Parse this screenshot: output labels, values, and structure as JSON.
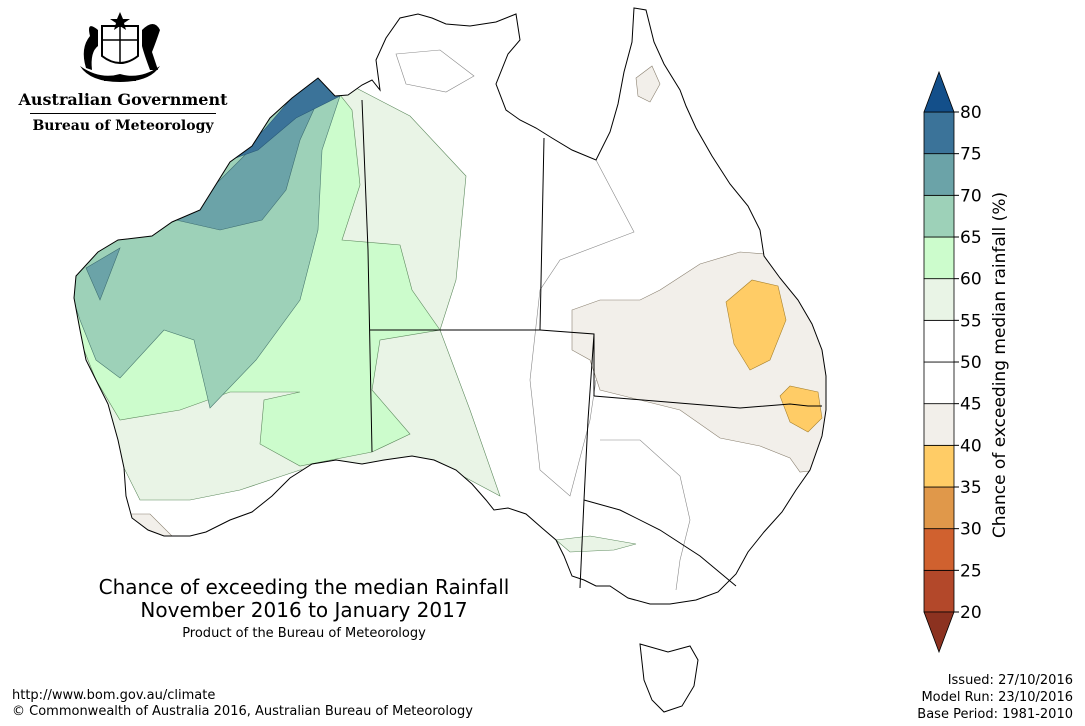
{
  "header": {
    "government": "Australian Government",
    "agency": "Bureau of Meteorology"
  },
  "map": {
    "title_line1": "Chance of exceeding the median Rainfall",
    "title_line2": "November 2016 to January 2017",
    "product_note": "Product of the Bureau of Meteorology",
    "region_fill": "#ffffff",
    "coast_color": "#000000"
  },
  "legend": {
    "title": "Chance of exceeding median rainfall (%)",
    "ticks": [
      "20",
      "25",
      "30",
      "35",
      "40",
      "45",
      "50",
      "55",
      "60",
      "65",
      "70",
      "75",
      "80"
    ],
    "bands": [
      {
        "range": [
          20,
          25
        ],
        "color": "#b3482a"
      },
      {
        "range": [
          25,
          30
        ],
        "color": "#d0612f"
      },
      {
        "range": [
          30,
          35
        ],
        "color": "#e0984a"
      },
      {
        "range": [
          35,
          40
        ],
        "color": "#ffcc66"
      },
      {
        "range": [
          40,
          45
        ],
        "color": "#f2efea"
      },
      {
        "range": [
          45,
          50
        ],
        "color": "#ffffff"
      },
      {
        "range": [
          50,
          55
        ],
        "color": "#ffffff"
      },
      {
        "range": [
          55,
          60
        ],
        "color": "#e9f4e6"
      },
      {
        "range": [
          60,
          65
        ],
        "color": "#ccfccc"
      },
      {
        "range": [
          65,
          70
        ],
        "color": "#9dd1b8"
      },
      {
        "range": [
          70,
          75
        ],
        "color": "#6ba3a8"
      },
      {
        "range": [
          75,
          80
        ],
        "color": "#3b7399"
      }
    ],
    "top_arrow_color": "#134f8a",
    "bottom_arrow_color": "#8c3220"
  },
  "footer": {
    "url": "http://www.bom.gov.au/climate",
    "copyright": "© Commonwealth of Australia 2016, Australian Bureau of Meteorology",
    "issued": "Issued: 27/10/2016",
    "model_run": "Model Run: 23/10/2016",
    "base_period": "Base Period: 1981-2010"
  }
}
